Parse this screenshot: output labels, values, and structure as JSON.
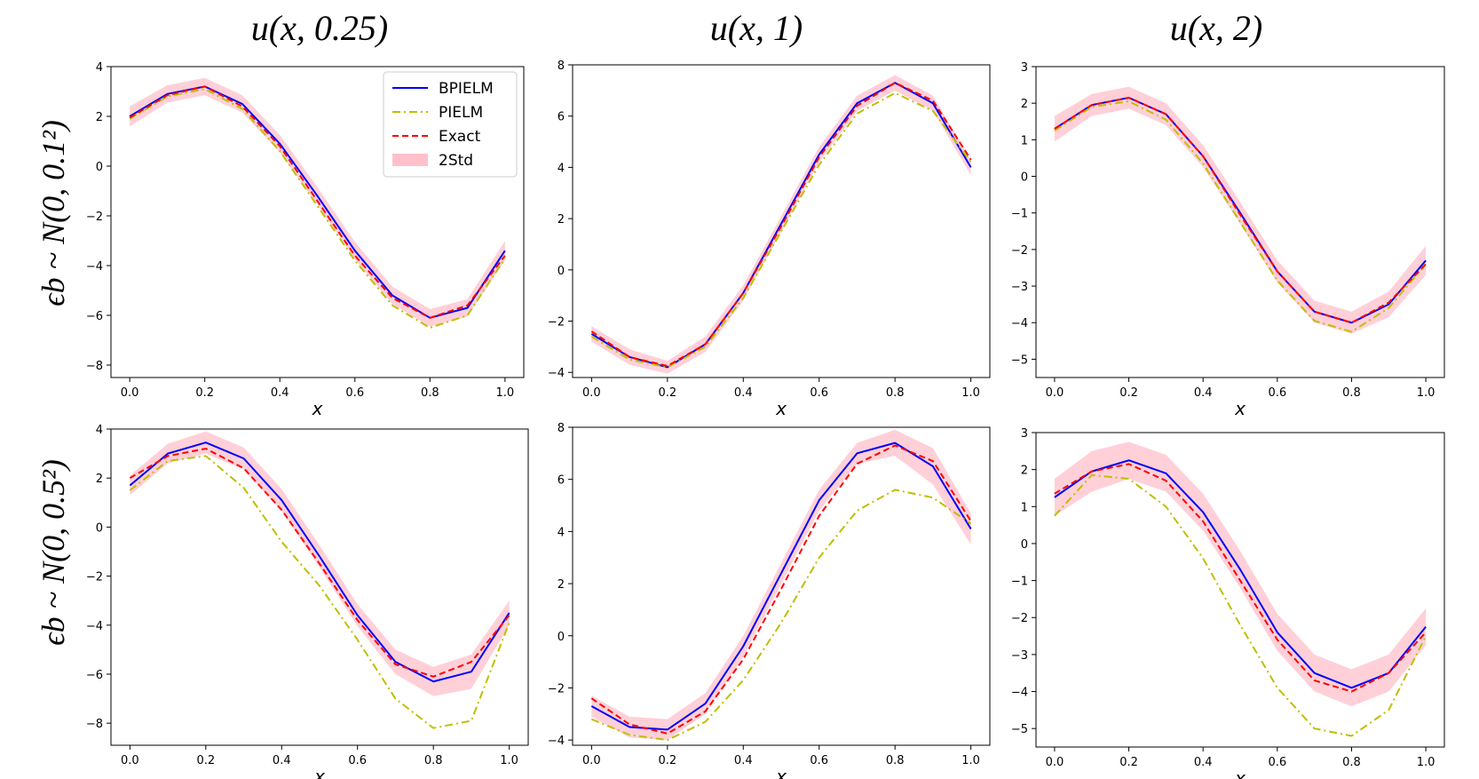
{
  "column_titles": [
    "u(x, 0.25)",
    "u(x, 1)",
    "u(x, 2)"
  ],
  "row_labels": [
    "ϵb ~ N(0, 0.1²)",
    "ϵb ~ N(0, 0.5²)"
  ],
  "colors": {
    "bpielm": "#0000ff",
    "pielm": "#bfbf00",
    "exact": "#ff0000",
    "band": "#ffc0cb"
  },
  "chart_data": [
    {
      "type": "line",
      "panel": "row1-col1",
      "title": "u(x, 0.25)",
      "xlabel": "x",
      "ylabel": "",
      "xlim": [
        -0.05,
        1.05
      ],
      "ylim": [
        -8.5,
        4
      ],
      "xticks": [
        0.0,
        0.2,
        0.4,
        0.6,
        0.8,
        1.0
      ],
      "yticks": [
        4,
        2,
        0,
        -2,
        -4,
        -6,
        -8
      ],
      "x": [
        0.0,
        0.1,
        0.2,
        0.3,
        0.4,
        0.5,
        0.6,
        0.7,
        0.8,
        0.9,
        1.0
      ],
      "series": [
        {
          "name": "BPIELM",
          "values": [
            2.0,
            2.9,
            3.2,
            2.5,
            0.9,
            -1.2,
            -3.4,
            -5.2,
            -6.1,
            -5.7,
            -3.4
          ]
        },
        {
          "name": "PIELM",
          "values": [
            1.9,
            2.8,
            3.1,
            2.3,
            0.6,
            -1.6,
            -3.8,
            -5.6,
            -6.5,
            -6.0,
            -3.7
          ]
        },
        {
          "name": "Exact",
          "values": [
            1.95,
            2.85,
            3.2,
            2.4,
            0.8,
            -1.4,
            -3.6,
            -5.3,
            -6.1,
            -5.6,
            -3.6
          ]
        }
      ],
      "band": {
        "name": "2Std",
        "lower": [
          1.6,
          2.55,
          2.85,
          2.15,
          0.55,
          -1.55,
          -3.75,
          -5.55,
          -6.45,
          -6.05,
          -3.8
        ],
        "upper": [
          2.4,
          3.25,
          3.55,
          2.85,
          1.25,
          -0.85,
          -3.05,
          -4.85,
          -5.75,
          -5.35,
          -3.0
        ]
      },
      "legend": [
        "BPIELM",
        "PIELM",
        "Exact",
        "2Std"
      ],
      "legend_position": "top-right"
    },
    {
      "type": "line",
      "panel": "row1-col2",
      "title": "u(x, 1)",
      "xlabel": "x",
      "ylabel": "",
      "xlim": [
        -0.05,
        1.05
      ],
      "ylim": [
        -4.2,
        8
      ],
      "xticks": [
        0.0,
        0.2,
        0.4,
        0.6,
        0.8,
        1.0
      ],
      "yticks": [
        8,
        6,
        4,
        2,
        0,
        -2,
        -4
      ],
      "x": [
        0.0,
        0.1,
        0.2,
        0.3,
        0.4,
        0.5,
        0.6,
        0.7,
        0.8,
        0.9,
        1.0
      ],
      "series": [
        {
          "name": "BPIELM",
          "values": [
            -2.5,
            -3.4,
            -3.8,
            -2.9,
            -0.9,
            1.8,
            4.5,
            6.5,
            7.3,
            6.5,
            4.0
          ]
        },
        {
          "name": "PIELM",
          "values": [
            -2.6,
            -3.5,
            -3.8,
            -3.0,
            -1.1,
            1.5,
            4.1,
            6.1,
            6.9,
            6.2,
            4.2
          ]
        },
        {
          "name": "Exact",
          "values": [
            -2.4,
            -3.4,
            -3.75,
            -2.9,
            -0.9,
            1.7,
            4.4,
            6.4,
            7.3,
            6.6,
            4.3
          ]
        }
      ],
      "band": {
        "name": "2Std",
        "lower": [
          -2.8,
          -3.7,
          -4.05,
          -3.2,
          -1.2,
          1.5,
          4.2,
          6.2,
          7.0,
          6.2,
          3.7
        ],
        "upper": [
          -2.2,
          -3.1,
          -3.55,
          -2.6,
          -0.6,
          2.1,
          4.8,
          6.8,
          7.6,
          6.8,
          4.3
        ]
      }
    },
    {
      "type": "line",
      "panel": "row1-col3",
      "title": "u(x, 2)",
      "xlabel": "x",
      "ylabel": "",
      "xlim": [
        -0.05,
        1.05
      ],
      "ylim": [
        -5.5,
        3
      ],
      "xticks": [
        0.0,
        0.2,
        0.4,
        0.6,
        0.8,
        1.0
      ],
      "yticks": [
        3,
        2,
        1,
        0,
        -1,
        -2,
        -3,
        -4,
        -5
      ],
      "x": [
        0.0,
        0.1,
        0.2,
        0.3,
        0.4,
        0.5,
        0.6,
        0.7,
        0.8,
        0.9,
        1.0
      ],
      "series": [
        {
          "name": "BPIELM",
          "values": [
            1.3,
            1.95,
            2.15,
            1.7,
            0.55,
            -1.0,
            -2.6,
            -3.7,
            -4.0,
            -3.5,
            -2.3
          ]
        },
        {
          "name": "PIELM",
          "values": [
            1.25,
            1.9,
            2.05,
            1.55,
            0.35,
            -1.25,
            -2.85,
            -3.95,
            -4.25,
            -3.6,
            -2.4
          ]
        },
        {
          "name": "Exact",
          "values": [
            1.3,
            1.95,
            2.15,
            1.7,
            0.55,
            -1.05,
            -2.6,
            -3.7,
            -4.0,
            -3.45,
            -2.4
          ]
        }
      ],
      "band": {
        "name": "2Std",
        "lower": [
          0.95,
          1.65,
          1.85,
          1.4,
          0.25,
          -1.3,
          -2.9,
          -4.0,
          -4.3,
          -3.85,
          -2.7
        ],
        "upper": [
          1.65,
          2.25,
          2.45,
          2.0,
          0.85,
          -0.7,
          -2.3,
          -3.4,
          -3.7,
          -3.15,
          -1.9
        ]
      }
    },
    {
      "type": "line",
      "panel": "row2-col1",
      "title": "u(x, 0.25)",
      "xlabel": "x",
      "ylabel": "",
      "xlim": [
        -0.05,
        1.05
      ],
      "ylim": [
        -8.9,
        4
      ],
      "xticks": [
        0.0,
        0.2,
        0.4,
        0.6,
        0.8,
        1.0
      ],
      "yticks": [
        4,
        2,
        0,
        -2,
        -4,
        -6,
        -8
      ],
      "x": [
        0.0,
        0.1,
        0.2,
        0.3,
        0.4,
        0.5,
        0.6,
        0.7,
        0.8,
        0.9,
        1.0
      ],
      "series": [
        {
          "name": "BPIELM",
          "values": [
            1.7,
            3.0,
            3.45,
            2.8,
            1.1,
            -1.2,
            -3.6,
            -5.5,
            -6.3,
            -5.9,
            -3.5
          ]
        },
        {
          "name": "PIELM",
          "values": [
            1.5,
            2.7,
            2.9,
            1.6,
            -0.6,
            -2.4,
            -4.6,
            -7.0,
            -8.2,
            -7.9,
            -3.9
          ]
        },
        {
          "name": "Exact",
          "values": [
            2.0,
            2.9,
            3.2,
            2.4,
            0.7,
            -1.5,
            -3.8,
            -5.6,
            -6.1,
            -5.5,
            -3.6
          ]
        }
      ],
      "band": {
        "name": "2Std",
        "lower": [
          1.3,
          2.6,
          3.0,
          2.35,
          0.65,
          -1.65,
          -4.05,
          -6.0,
          -6.9,
          -6.6,
          -4.0
        ],
        "upper": [
          2.1,
          3.4,
          3.9,
          3.25,
          1.55,
          -0.75,
          -3.15,
          -5.0,
          -5.7,
          -5.2,
          -3.0
        ]
      }
    },
    {
      "type": "line",
      "panel": "row2-col2",
      "title": "u(x, 1)",
      "xlabel": "x",
      "ylabel": "",
      "xlim": [
        -0.05,
        1.05
      ],
      "ylim": [
        -4.2,
        8
      ],
      "xticks": [
        0.0,
        0.2,
        0.4,
        0.6,
        0.8,
        1.0
      ],
      "yticks": [
        8,
        6,
        4,
        2,
        0,
        -2,
        -4
      ],
      "x": [
        0.0,
        0.1,
        0.2,
        0.3,
        0.4,
        0.5,
        0.6,
        0.7,
        0.8,
        0.9,
        1.0
      ],
      "series": [
        {
          "name": "BPIELM",
          "values": [
            -2.7,
            -3.5,
            -3.6,
            -2.6,
            -0.4,
            2.4,
            5.2,
            7.0,
            7.4,
            6.5,
            4.1
          ]
        },
        {
          "name": "PIELM",
          "values": [
            -3.2,
            -3.8,
            -4.0,
            -3.3,
            -1.7,
            0.5,
            3.0,
            4.8,
            5.6,
            5.3,
            4.3
          ]
        },
        {
          "name": "Exact",
          "values": [
            -2.4,
            -3.4,
            -3.75,
            -2.9,
            -0.9,
            1.8,
            4.6,
            6.6,
            7.3,
            6.7,
            4.4
          ]
        }
      ],
      "band": {
        "name": "2Std",
        "lower": [
          -3.1,
          -3.9,
          -4.0,
          -3.0,
          -0.8,
          2.0,
          4.8,
          6.6,
          6.9,
          5.8,
          3.5
        ],
        "upper": [
          -2.3,
          -3.1,
          -3.2,
          -2.2,
          0.0,
          2.8,
          5.6,
          7.4,
          7.9,
          7.2,
          4.7
        ]
      }
    },
    {
      "type": "line",
      "panel": "row2-col3",
      "title": "u(x, 2)",
      "xlabel": "x",
      "ylabel": "",
      "xlim": [
        -0.05,
        1.05
      ],
      "ylim": [
        -5.5,
        3
      ],
      "xticks": [
        0.0,
        0.2,
        0.4,
        0.6,
        0.8,
        1.0
      ],
      "yticks": [
        3,
        2,
        1,
        0,
        -1,
        -2,
        -3,
        -4,
        -5
      ],
      "x": [
        0.0,
        0.1,
        0.2,
        0.3,
        0.4,
        0.5,
        0.6,
        0.7,
        0.8,
        0.9,
        1.0
      ],
      "series": [
        {
          "name": "BPIELM",
          "values": [
            1.25,
            1.95,
            2.25,
            1.9,
            0.85,
            -0.7,
            -2.4,
            -3.5,
            -3.9,
            -3.5,
            -2.25
          ]
        },
        {
          "name": "PIELM",
          "values": [
            0.75,
            1.85,
            1.75,
            1.0,
            -0.4,
            -2.2,
            -3.9,
            -5.0,
            -5.2,
            -4.5,
            -2.5
          ]
        },
        {
          "name": "Exact",
          "values": [
            1.35,
            1.95,
            2.15,
            1.7,
            0.6,
            -1.0,
            -2.6,
            -3.7,
            -4.0,
            -3.5,
            -2.4
          ]
        }
      ],
      "band": {
        "name": "2Std",
        "lower": [
          0.75,
          1.4,
          1.75,
          1.4,
          0.35,
          -1.2,
          -2.9,
          -4.0,
          -4.4,
          -4.0,
          -2.75
        ],
        "upper": [
          1.75,
          2.5,
          2.75,
          2.4,
          1.35,
          -0.2,
          -1.9,
          -3.0,
          -3.4,
          -3.0,
          -1.75
        ]
      }
    }
  ]
}
